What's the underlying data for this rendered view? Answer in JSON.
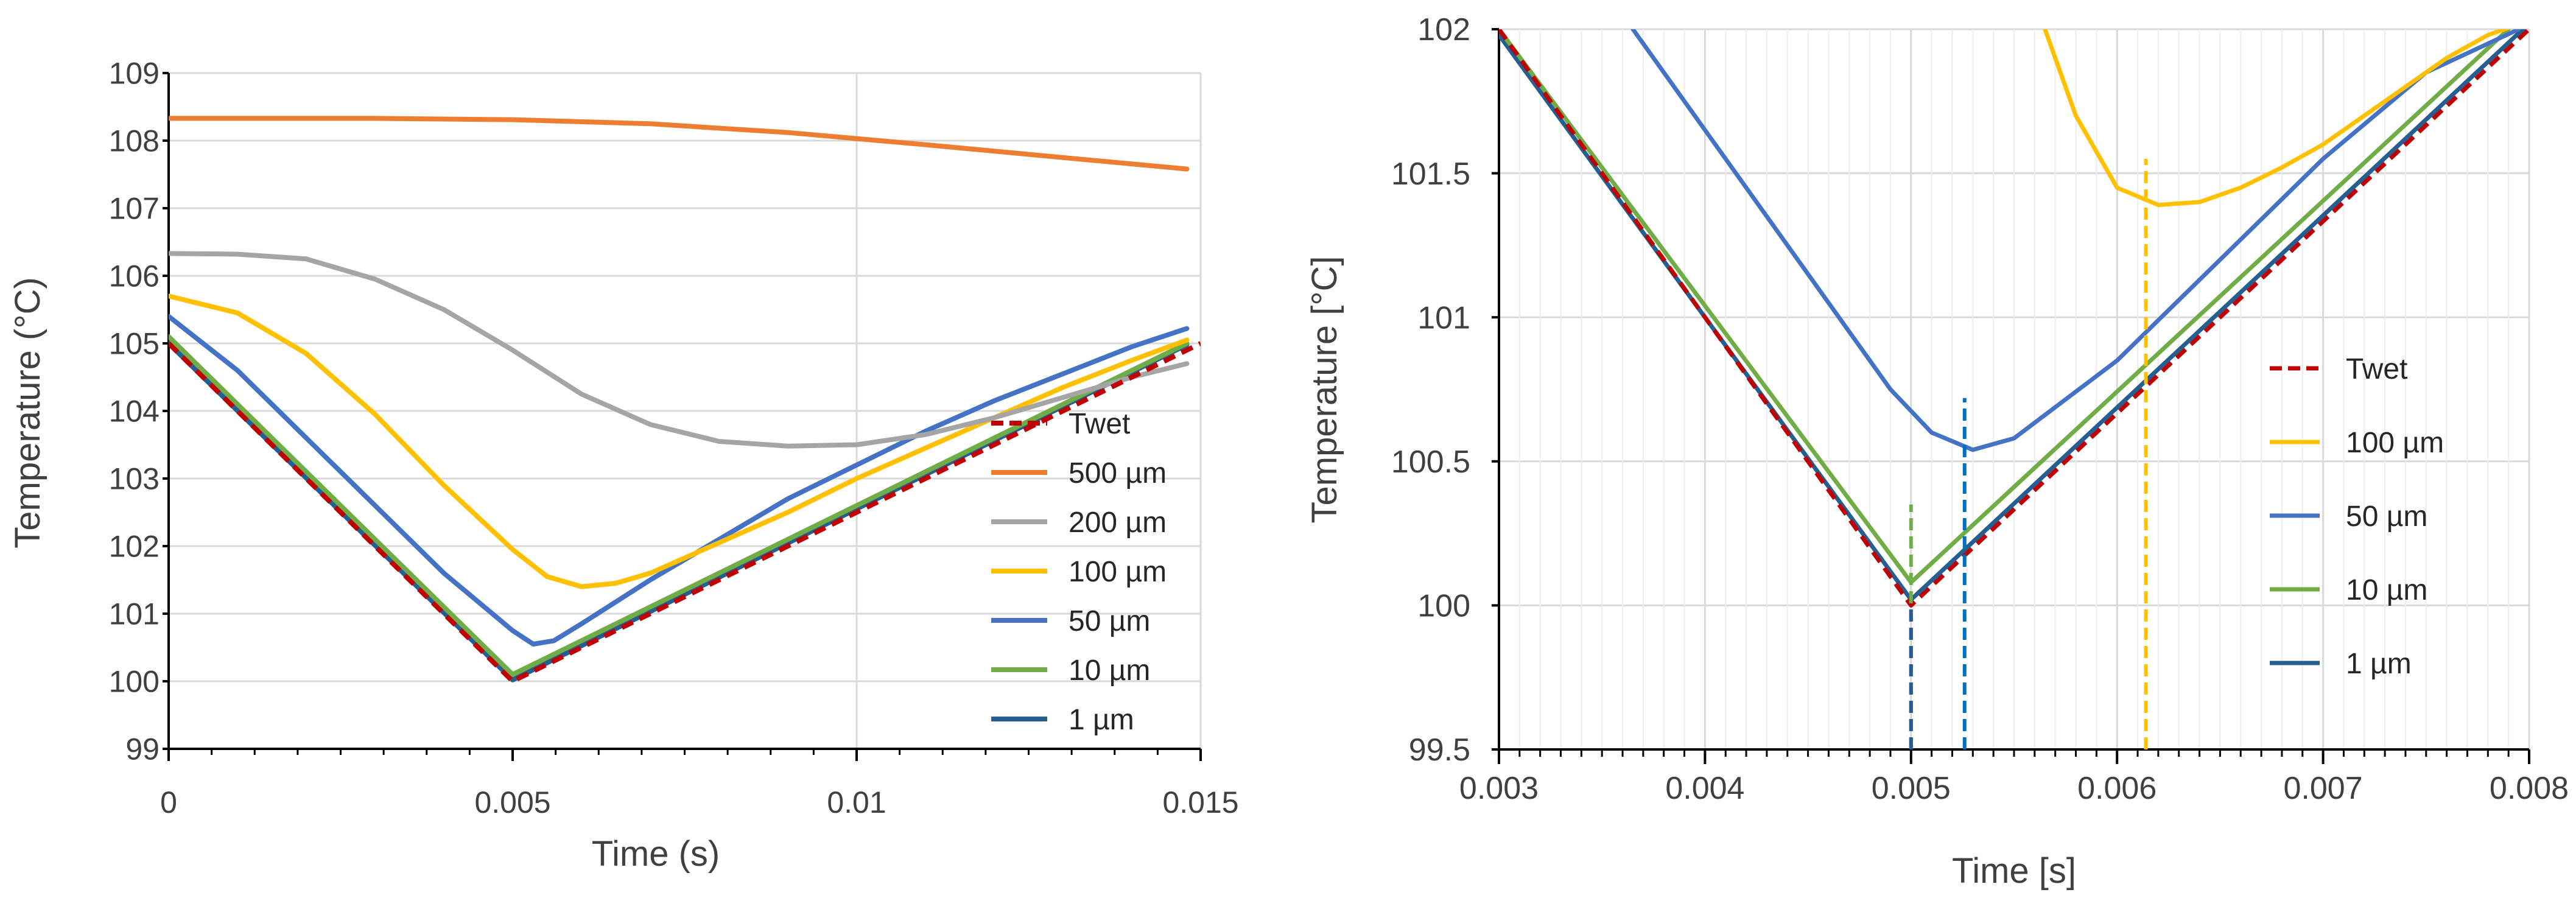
{
  "chart_data": [
    {
      "type": "line",
      "xlabel": "Time (s)",
      "ylabel": "Temperature (°C)",
      "xlim": [
        0,
        0.015
      ],
      "ylim": [
        99,
        109
      ],
      "xticks": [
        0,
        0.005,
        0.01,
        0.015
      ],
      "xtick_labels": [
        "0",
        "0.005",
        "0.01",
        "0.015"
      ],
      "yticks": [
        99,
        100,
        101,
        102,
        103,
        104,
        105,
        106,
        107,
        108,
        109
      ],
      "ytick_labels": [
        "99",
        "100",
        "101",
        "102",
        "103",
        "104",
        "105",
        "106",
        "107",
        "108",
        "109"
      ],
      "grid": true,
      "legend_position": "right",
      "series": [
        {
          "name": "Twet",
          "color": "#C00000",
          "dashed": true,
          "x": [
            0,
            0.005,
            0.015
          ],
          "y": [
            105.0,
            100.0,
            105.0
          ]
        },
        {
          "name": "500 µm",
          "color": "#ED7D31",
          "dashed": false,
          "x": [
            0,
            0.003,
            0.005,
            0.007,
            0.009,
            0.011,
            0.013,
            0.0148
          ],
          "y": [
            108.33,
            108.33,
            108.31,
            108.25,
            108.12,
            107.94,
            107.75,
            107.58
          ]
        },
        {
          "name": "200 µm",
          "color": "#A5A5A5",
          "dashed": false,
          "x": [
            0,
            0.001,
            0.002,
            0.003,
            0.004,
            0.005,
            0.006,
            0.007,
            0.008,
            0.009,
            0.01,
            0.011,
            0.012,
            0.013,
            0.014,
            0.0148
          ],
          "y": [
            106.33,
            106.32,
            106.25,
            105.95,
            105.5,
            104.9,
            104.25,
            103.8,
            103.55,
            103.48,
            103.5,
            103.65,
            103.9,
            104.2,
            104.5,
            104.7
          ]
        },
        {
          "name": "100 µm",
          "color": "#FFC000",
          "dashed": false,
          "x": [
            0,
            0.001,
            0.002,
            0.003,
            0.004,
            0.005,
            0.0055,
            0.006,
            0.0065,
            0.007,
            0.008,
            0.009,
            0.01,
            0.011,
            0.012,
            0.013,
            0.014,
            0.0148
          ],
          "y": [
            105.7,
            105.45,
            104.85,
            103.95,
            102.9,
            101.95,
            101.55,
            101.4,
            101.45,
            101.6,
            102.05,
            102.5,
            103.0,
            103.45,
            103.9,
            104.35,
            104.75,
            105.05
          ]
        },
        {
          "name": "50 µm",
          "color": "#4472C4",
          "dashed": false,
          "x": [
            0,
            0.001,
            0.002,
            0.003,
            0.004,
            0.005,
            0.0053,
            0.0056,
            0.006,
            0.007,
            0.008,
            0.009,
            0.01,
            0.011,
            0.012,
            0.013,
            0.014,
            0.0148
          ],
          "y": [
            105.4,
            104.6,
            103.6,
            102.6,
            101.6,
            100.75,
            100.55,
            100.6,
            100.85,
            101.5,
            102.1,
            102.7,
            103.2,
            103.7,
            104.15,
            104.55,
            104.95,
            105.22
          ]
        },
        {
          "name": "10 µm",
          "color": "#70AD47",
          "dashed": false,
          "x": [
            0,
            0.005,
            0.0148
          ],
          "y": [
            105.1,
            100.1,
            105.0
          ]
        },
        {
          "name": "1 µm",
          "color": "#255E91",
          "dashed": false,
          "x": [
            0,
            0.005,
            0.0148
          ],
          "y": [
            105.0,
            100.02,
            104.98
          ]
        }
      ]
    },
    {
      "type": "line",
      "xlabel": "Time [s]",
      "ylabel": "Temperature [°C]",
      "xlim": [
        0.003,
        0.008
      ],
      "ylim": [
        99.5,
        102
      ],
      "xticks": [
        0.003,
        0.004,
        0.005,
        0.006,
        0.007,
        0.008
      ],
      "xtick_labels": [
        "0.003",
        "0.004",
        "0.005",
        "0.006",
        "0.007",
        "0.008"
      ],
      "yticks": [
        99.5,
        100,
        100.5,
        101,
        101.5,
        102
      ],
      "ytick_labels": [
        "99.5",
        "100",
        "100.5",
        "101",
        "101.5",
        "102"
      ],
      "grid": true,
      "legend_position": "right",
      "series": [
        {
          "name": "Twet",
          "color": "#C00000",
          "dashed": true,
          "x": [
            0.003,
            0.005,
            0.008
          ],
          "y": [
            102.0,
            100.0,
            102.0
          ]
        },
        {
          "name": "100 µm",
          "color": "#FFC000",
          "dashed": false,
          "x": [
            0.00565,
            0.0058,
            0.006,
            0.0062,
            0.0064,
            0.0066,
            0.0068,
            0.007,
            0.0072,
            0.0074,
            0.0076,
            0.0078,
            0.008
          ],
          "y": [
            102.0,
            101.7,
            101.45,
            101.39,
            101.4,
            101.45,
            101.52,
            101.6,
            101.7,
            101.8,
            101.9,
            101.98,
            102.03
          ]
        },
        {
          "name": "50 µm",
          "color": "#4472C4",
          "dashed": false,
          "x": [
            0.00365,
            0.004,
            0.0045,
            0.0049,
            0.0051,
            0.0053,
            0.0055,
            0.006,
            0.0065,
            0.007,
            0.0075,
            0.00795
          ],
          "y": [
            102.0,
            101.65,
            101.15,
            100.75,
            100.6,
            100.54,
            100.58,
            100.85,
            101.2,
            101.55,
            101.85,
            102.0
          ]
        },
        {
          "name": "10 µm",
          "color": "#70AD47",
          "dashed": false,
          "x": [
            0.003,
            0.005,
            0.0079
          ],
          "y": [
            102.0,
            100.08,
            102.0
          ]
        },
        {
          "name": "1 µm",
          "color": "#255E91",
          "dashed": false,
          "x": [
            0.003,
            0.005,
            0.008
          ],
          "y": [
            101.98,
            100.02,
            102.02
          ]
        }
      ],
      "markers": [
        {
          "x": 0.005,
          "y_top": 100.35,
          "color": "#70AD47"
        },
        {
          "x": 0.005,
          "y_top": 100.0,
          "color": "#255E91"
        },
        {
          "x": 0.00526,
          "y_top": 100.72,
          "color": "#0070C0"
        },
        {
          "x": 0.00614,
          "y_top": 101.55,
          "color": "#FFC000"
        }
      ]
    }
  ]
}
